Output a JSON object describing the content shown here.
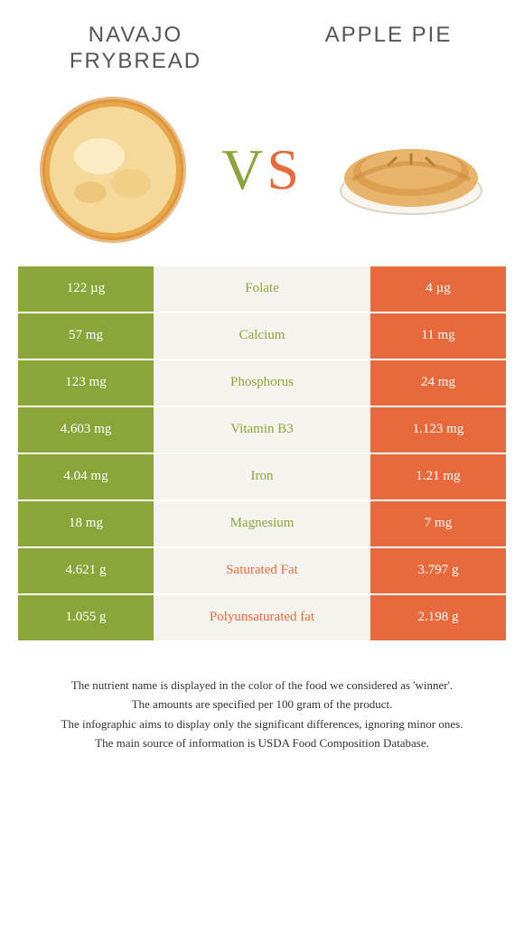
{
  "header": {
    "left_title": "Navajo Frybread",
    "right_title": "Apple Pie",
    "vs_v": "V",
    "vs_s": "S"
  },
  "colors": {
    "green": "#8aa63a",
    "orange": "#e66a3c",
    "mid_bg": "#f4f3ee",
    "text": "#333333"
  },
  "table": {
    "rows": [
      {
        "left": "122 µg",
        "label": "Folate",
        "right": "4 µg",
        "winner": "left"
      },
      {
        "left": "57 mg",
        "label": "Calcium",
        "right": "11 mg",
        "winner": "left"
      },
      {
        "left": "123 mg",
        "label": "Phosphorus",
        "right": "24 mg",
        "winner": "left"
      },
      {
        "left": "4.603 mg",
        "label": "Vitamin B3",
        "right": "1.123 mg",
        "winner": "left"
      },
      {
        "left": "4.04 mg",
        "label": "Iron",
        "right": "1.21 mg",
        "winner": "left"
      },
      {
        "left": "18 mg",
        "label": "Magnesium",
        "right": "7 mg",
        "winner": "left"
      },
      {
        "left": "4.621 g",
        "label": "Saturated Fat",
        "right": "3.797 g",
        "winner": "right"
      },
      {
        "left": "1.055 g",
        "label": "Polyunsaturated fat",
        "right": "2.198 g",
        "winner": "right"
      }
    ]
  },
  "footer": {
    "line1": "The nutrient name is displayed in the color of the food we considered as 'winner'.",
    "line2": "The amounts are specified per 100 gram of the product.",
    "line3": "The infographic aims to display only the significant differences, ignoring minor ones.",
    "line4": "The main source of information is USDA Food Composition Database."
  }
}
